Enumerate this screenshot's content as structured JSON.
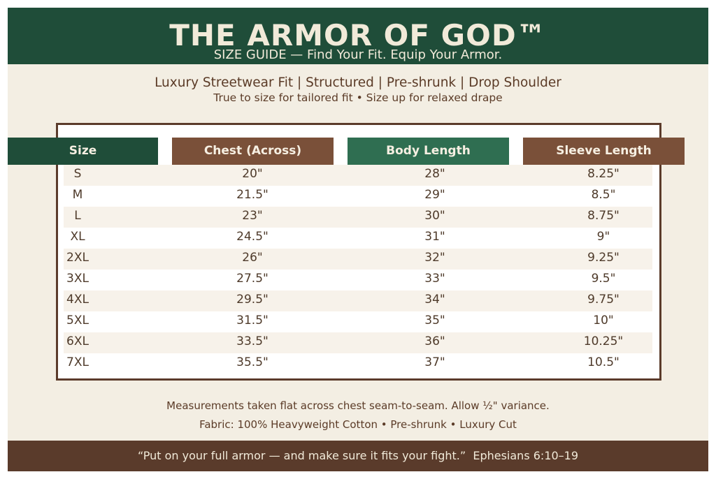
{
  "header": {
    "title": "THE ARMOR OF GOD™",
    "subtitle": "SIZE GUIDE — Find Your Fit. Equip Your Armor."
  },
  "tagline": {
    "main": "Luxury Streetwear Fit | Structured | Pre-shrunk | Drop Shoulder",
    "sub": "True to size for tailored fit • Size up for relaxed drape"
  },
  "table": {
    "columns": [
      {
        "label": "Size",
        "color": "#1f4d39"
      },
      {
        "label": "Chest (Across)",
        "color": "#7a5039"
      },
      {
        "label": "Body Length",
        "color": "#2f6e51"
      },
      {
        "label": "Sleeve Length",
        "color": "#7a5039"
      }
    ],
    "rows": [
      [
        "S",
        "20\"",
        "28\"",
        "8.25\""
      ],
      [
        "M",
        "21.5\"",
        "29\"",
        "8.5\""
      ],
      [
        "L",
        "23\"",
        "30\"",
        "8.75\""
      ],
      [
        "XL",
        "24.5\"",
        "31\"",
        "9\""
      ],
      [
        "2XL",
        "26\"",
        "32\"",
        "9.25\""
      ],
      [
        "3XL",
        "27.5\"",
        "33\"",
        "9.5\""
      ],
      [
        "4XL",
        "29.5\"",
        "34\"",
        "9.75\""
      ],
      [
        "5XL",
        "31.5\"",
        "35\"",
        "10\""
      ],
      [
        "6XL",
        "33.5\"",
        "36\"",
        "10.25\""
      ],
      [
        "7XL",
        "35.5\"",
        "37\"",
        "10.5\""
      ]
    ]
  },
  "notes": {
    "measurement": "Measurements taken flat across chest seam-to-seam. Allow ½\" variance.",
    "fabric": "Fabric: 100% Heavyweight Cotton • Pre-shrunk • Luxury Cut"
  },
  "footer": {
    "quote": "“Put on your full armor — and make sure it fits your fight.”  Ephesians 6:10–19"
  },
  "colors": {
    "header_green": "#1f4d39",
    "accent_brown": "#5a3b2b",
    "background_cream": "#f3eee3"
  }
}
